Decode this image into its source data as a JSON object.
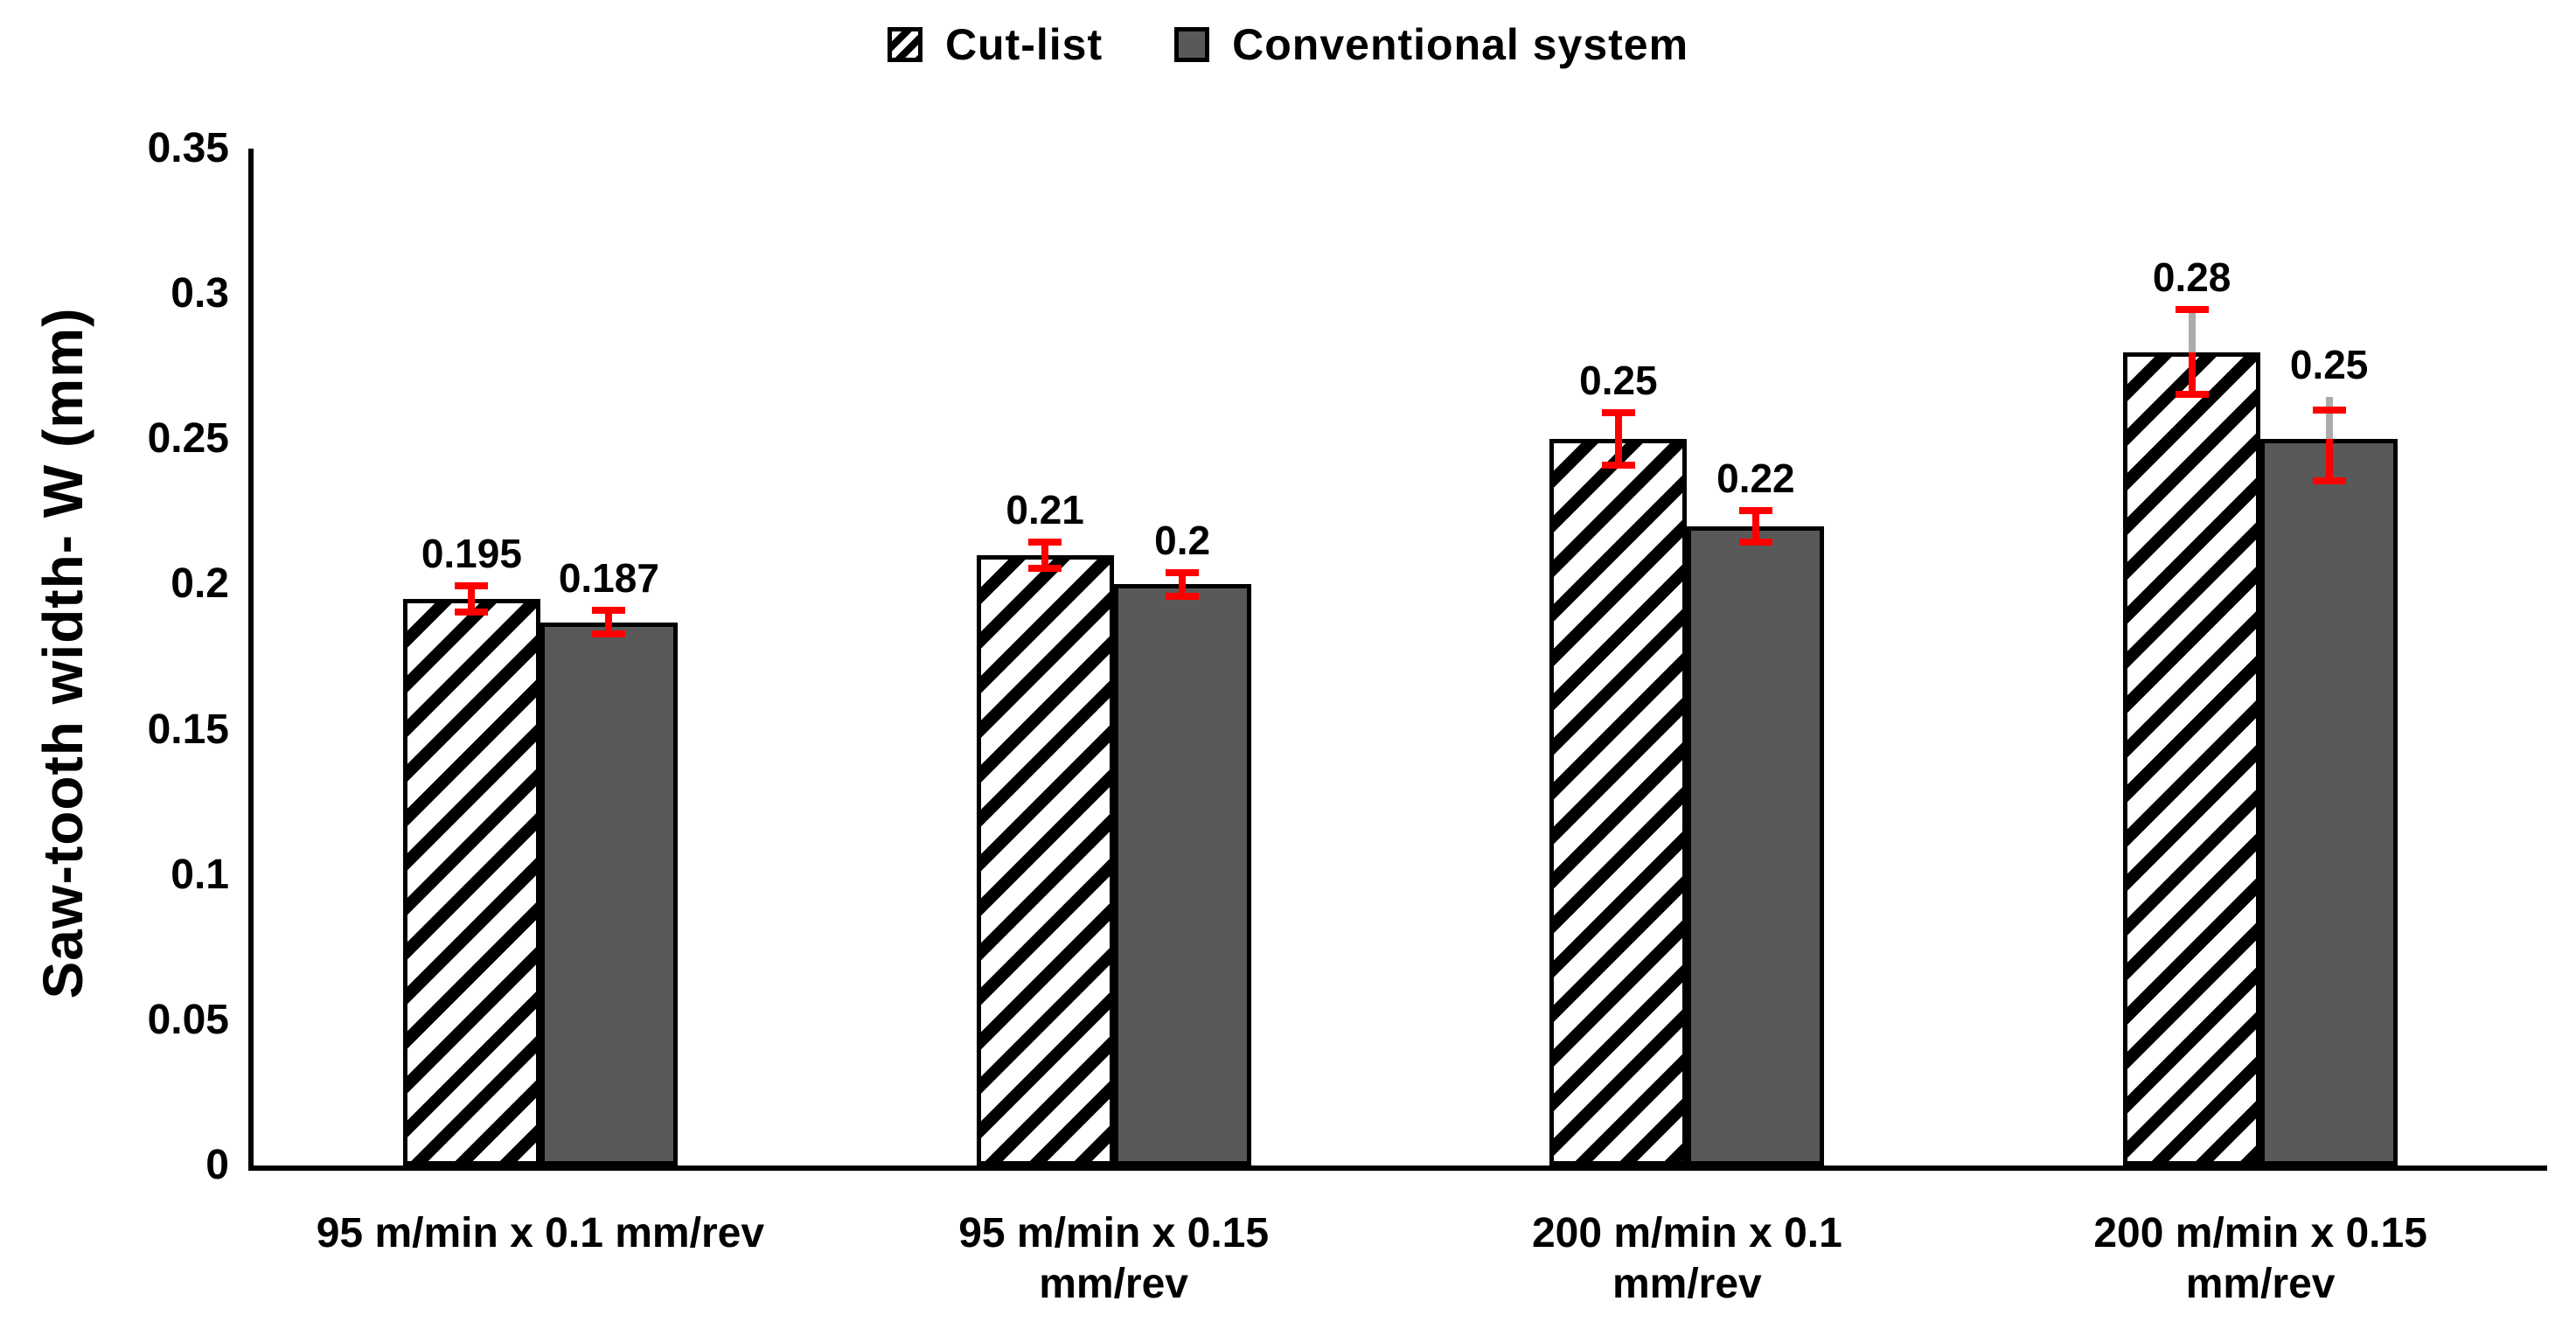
{
  "chart_data": {
    "type": "bar",
    "title": "",
    "ylabel": "Saw-tooth width- W (mm)",
    "xlabel": "",
    "ylim": [
      0,
      0.35
    ],
    "ytick_step": 0.05,
    "yticks": [
      "0",
      "0.05",
      "0.1",
      "0.15",
      "0.2",
      "0.25",
      "0.3",
      "0.35"
    ],
    "grid": false,
    "legend_position": "top-center",
    "categories": [
      "95 m/min x 0.1 mm/rev",
      "95 m/min x 0.15\nmm/rev",
      "200 m/min x 0.1\nmm/rev",
      "200 m/min x 0.15\nmm/rev"
    ],
    "series": [
      {
        "name": "Cut-list",
        "style": "hatched",
        "values": [
          0.195,
          0.21,
          0.25,
          0.28
        ],
        "labels": [
          "0.195",
          "0.21",
          "0.25",
          "0.28"
        ],
        "err_plus": [
          0.0045,
          0.0045,
          0.009,
          0.0145
        ],
        "err_minus": [
          0.0045,
          0.0045,
          0.009,
          0.0145
        ],
        "err_cap_top_offset": [
          null,
          null,
          null,
          null
        ],
        "err_stem_above": [
          "red",
          "red",
          "red",
          "gray"
        ]
      },
      {
        "name": "Conventional system",
        "style": "solid-gray",
        "values": [
          0.187,
          0.2,
          0.22,
          0.25
        ],
        "labels": [
          "0.187",
          "0.2",
          "0.22",
          "0.25"
        ],
        "err_plus": [
          0.004,
          0.004,
          0.0055,
          0.0145
        ],
        "err_minus": [
          0.004,
          0.004,
          0.0055,
          0.0145
        ],
        "err_cap_top_offset": [
          null,
          null,
          null,
          0.01
        ],
        "err_stem_above": [
          "red",
          "red",
          "red",
          "gray"
        ]
      }
    ],
    "colors": {
      "bar_gray_fill": "#595959",
      "bar_border": "#000000",
      "hatch_black": "#000000",
      "hatch_white": "#ffffff",
      "error_red": "#ff0000",
      "error_gray": "#ababab",
      "axis": "#000000",
      "text": "#000000",
      "background": "#ffffff"
    }
  }
}
